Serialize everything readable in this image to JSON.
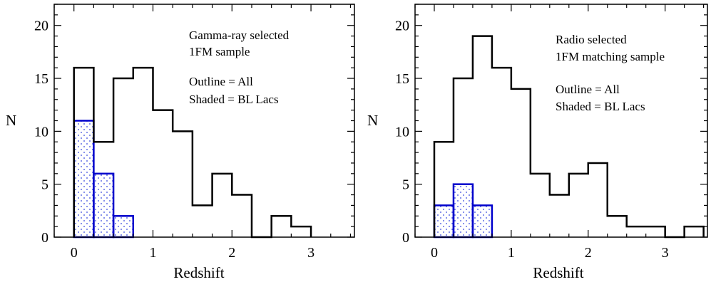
{
  "chart_data": [
    {
      "type": "bar",
      "style": "step-histogram",
      "xlabel": "Redshift",
      "ylabel": "N",
      "xlim": [
        -0.25,
        3.55
      ],
      "ylim": [
        0,
        22
      ],
      "xticks": [
        0,
        1,
        2,
        3
      ],
      "yticks": [
        0,
        5,
        10,
        15,
        20
      ],
      "bin_width": 0.25,
      "bin_edges": [
        0,
        0.25,
        0.5,
        0.75,
        1.0,
        1.25,
        1.5,
        1.75,
        2.0,
        2.25,
        2.5,
        2.75,
        3.0
      ],
      "series": [
        {
          "role": "outline",
          "color": "#000000",
          "values": [
            16,
            9,
            15,
            16,
            12,
            10,
            3,
            6,
            4,
            0,
            2,
            1
          ]
        },
        {
          "role": "shaded",
          "color": "#0000cc",
          "values": [
            11,
            6,
            2,
            0,
            0,
            0,
            0,
            0,
            0,
            0,
            0,
            0
          ]
        }
      ],
      "annotations": [
        "Gamma-ray selected",
        "1FM sample",
        "Outline = All",
        "Shaded = BL Lacs"
      ]
    },
    {
      "type": "bar",
      "style": "step-histogram",
      "xlabel": "Redshift",
      "ylabel": "N",
      "xlim": [
        -0.25,
        3.55
      ],
      "ylim": [
        0,
        22
      ],
      "xticks": [
        0,
        1,
        2,
        3
      ],
      "yticks": [
        0,
        5,
        10,
        15,
        20
      ],
      "bin_width": 0.25,
      "bin_edges": [
        0,
        0.25,
        0.5,
        0.75,
        1.0,
        1.25,
        1.5,
        1.75,
        2.0,
        2.25,
        2.5,
        2.75,
        3.0,
        3.25,
        3.5
      ],
      "series": [
        {
          "role": "outline",
          "color": "#000000",
          "values": [
            9,
            15,
            19,
            16,
            14,
            6,
            4,
            6,
            7,
            2,
            1,
            1,
            0,
            1
          ]
        },
        {
          "role": "shaded",
          "color": "#0000cc",
          "values": [
            3,
            5,
            3,
            0,
            0,
            0,
            0,
            0,
            0,
            0,
            0,
            0,
            0,
            0
          ]
        }
      ],
      "annotations": [
        "Radio selected",
        "1FM matching sample",
        "Outline = All",
        "Shaded = BL Lacs"
      ]
    }
  ]
}
